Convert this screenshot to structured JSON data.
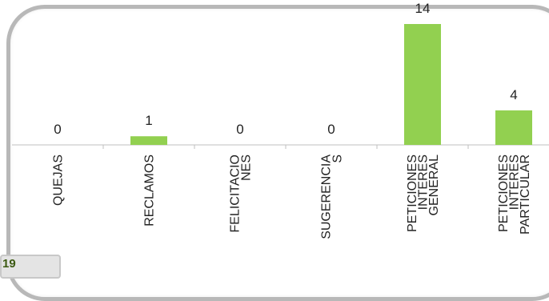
{
  "page_number": "19",
  "colors": {
    "bar": "#92d050",
    "axis": "#bfbfbf",
    "text": "#222222",
    "frame": "#b8b8b8"
  },
  "chart_data": {
    "type": "bar",
    "title": "",
    "xlabel": "",
    "ylabel": "",
    "categories": [
      [
        "QUEJAS"
      ],
      [
        "RECLAMOS"
      ],
      [
        "FELICITACIO",
        "NES"
      ],
      [
        "SUGERENCIA",
        "S"
      ],
      [
        "PETICIONES",
        "INTERES",
        "GENERAL"
      ],
      [
        "PETICIONES",
        "INTERES",
        "PARTICULAR"
      ]
    ],
    "values": [
      0,
      1,
      0,
      0,
      14,
      4
    ],
    "ylim": [
      0,
      14
    ],
    "grid": false,
    "legend": "none",
    "data_labels": true
  }
}
